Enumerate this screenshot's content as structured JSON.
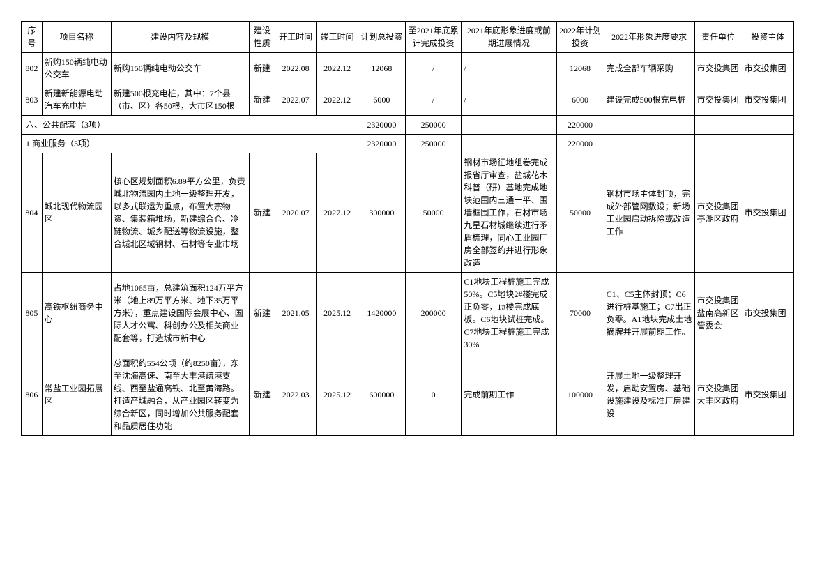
{
  "headers": {
    "seq": "序号",
    "name": "项目名称",
    "content": "建设内容及规模",
    "nature": "建设性质",
    "start": "开工时间",
    "end": "竣工时间",
    "total": "计划总投资",
    "cum": "至2021年底累计完成投资",
    "progress": "2021年底形象进度或前期进展情况",
    "plan": "2022年计划投资",
    "req": "2022年形象进度要求",
    "resp": "责任单位",
    "inv": "投资主体"
  },
  "rows": [
    {
      "seq": "802",
      "name": "新购150辆纯电动公交车",
      "content": "新购150辆纯电动公交车",
      "nature": "新建",
      "start": "2022.08",
      "end": "2022.12",
      "total": "12068",
      "cum": "/",
      "progress": "/",
      "plan": "12068",
      "req": "完成全部车辆采购",
      "resp": "市交投集团",
      "inv": "市交投集团"
    },
    {
      "seq": "803",
      "name": "新建新能源电动汽车充电桩",
      "content": "新建500根充电桩，其中：7个县（市、区）各50根，大市区150根",
      "nature": "新建",
      "start": "2022.07",
      "end": "2022.12",
      "total": "6000",
      "cum": "/",
      "progress": "/",
      "plan": "6000",
      "req": "建设完成500根充电桩",
      "resp": "市交投集团",
      "inv": "市交投集团"
    },
    {
      "section": true,
      "label": "六、公共配套（3项）",
      "total": "2320000",
      "cum": "250000",
      "plan": "220000"
    },
    {
      "section": true,
      "label": "1.商业服务（3项）",
      "total": "2320000",
      "cum": "250000",
      "plan": "220000"
    },
    {
      "seq": "804",
      "name": "城北现代物流园区",
      "content": "核心区规划面积6.89平方公里，负责城北物流园内土地一级整理开发，以多式联运为重点，布置大宗物资、集装箱堆场，新建综合仓、冷链物流、城乡配送等物流设施，整合城北区域钢材、石材等专业市场",
      "nature": "新建",
      "start": "2020.07",
      "end": "2027.12",
      "total": "300000",
      "cum": "50000",
      "progress": "钢材市场征地组卷完成报省厅审查，盐城花木科普（研）基地完成地块范围内三通一平、围墙框围工作，石材市场九星石材城继续进行矛盾梳理，同心工业园厂房全部签约并进行形象改造",
      "plan": "50000",
      "req": "钢材市场主体封顶，完成外部管网敷设；新场工业园启动拆除或改造工作",
      "resp": "市交投集团 亭湖区政府",
      "inv": "市交投集团"
    },
    {
      "seq": "805",
      "name": "高铁枢纽商务中心",
      "content": "占地1065亩，总建筑面积124万平方米（地上89万平方米、地下35万平方米），重点建设国际会展中心、国际人才公寓、科创办公及相关商业配套等，打造城市新中心",
      "nature": "新建",
      "start": "2021.05",
      "end": "2025.12",
      "total": "1420000",
      "cum": "200000",
      "progress": "C1地块工程桩施工完成50%。C5地块2#楼完成正负零，1#楼完成底板。C6地块试桩完成。C7地块工程桩施工完成30%",
      "plan": "70000",
      "req": "C1、C5主体封顶；C6进行桩基施工；C7出正负零。A1地块完成土地摘牌并开展前期工作。",
      "resp": "市交投集团 盐南高新区管委会",
      "inv": "市交投集团"
    },
    {
      "seq": "806",
      "name": "常盐工业园拓展区",
      "content": "总面积约554公顷（约8250亩），东至沈海高速、南至大丰港疏港支线、西至盐通高铁、北至黄海路。打造产城融合，从产业园区转变为综合新区，同时增加公共服务配套和品质居住功能",
      "nature": "新建",
      "start": "2022.03",
      "end": "2025.12",
      "total": "600000",
      "cum": "0",
      "progress": "完成前期工作",
      "plan": "100000",
      "req": "开展土地一级整理开发，启动安置房、基础设施建设及标准厂房建设",
      "resp": "市交投集团 大丰区政府",
      "inv": "市交投集团"
    }
  ]
}
